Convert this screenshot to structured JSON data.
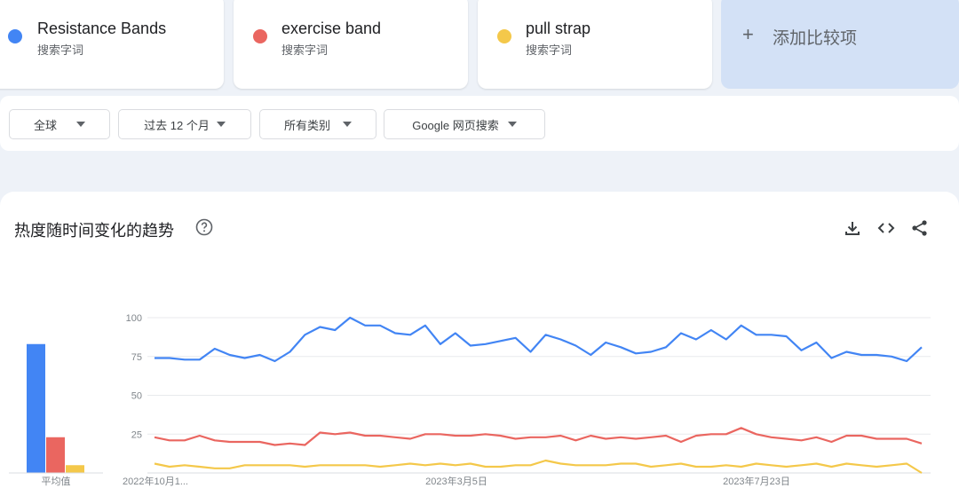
{
  "terms": [
    {
      "name": "Resistance Bands",
      "sub": "搜索字词",
      "color": "#4285f4"
    },
    {
      "name": "exercise band",
      "sub": "搜索字词",
      "color": "#ea6660"
    },
    {
      "name": "pull strap",
      "sub": "搜索字词",
      "color": "#f4c84a"
    }
  ],
  "add_compare": {
    "label": "添加比较项"
  },
  "filters": {
    "region": "全球",
    "period": "过去 12 个月",
    "category": "所有类别",
    "source": "Google 网页搜索"
  },
  "chart_section": {
    "title": "热度随时间变化的趋势"
  },
  "chart_data": {
    "type": "line",
    "ylim": [
      0,
      100
    ],
    "yticks": [
      "100",
      "75",
      "50",
      "25"
    ],
    "xtick_labels": [
      "2022年10月1...",
      "2023年3月5日",
      "2023年7月23日"
    ],
    "average_label": "平均值",
    "averages": [
      83,
      23,
      5
    ],
    "series": [
      {
        "name": "Resistance Bands",
        "color": "#4285f4",
        "values": [
          74,
          74,
          73,
          73,
          80,
          76,
          74,
          76,
          72,
          78,
          89,
          94,
          92,
          100,
          95,
          95,
          90,
          89,
          95,
          83,
          90,
          82,
          83,
          85,
          87,
          78,
          89,
          86,
          82,
          76,
          84,
          81,
          77,
          78,
          81,
          90,
          86,
          92,
          86,
          95,
          89,
          89,
          88,
          79,
          84,
          74,
          78,
          76,
          76,
          75,
          72,
          81
        ]
      },
      {
        "name": "exercise band",
        "color": "#ea6660",
        "values": [
          23,
          21,
          21,
          24,
          21,
          20,
          20,
          20,
          18,
          19,
          18,
          26,
          25,
          26,
          24,
          24,
          23,
          22,
          25,
          25,
          24,
          24,
          25,
          24,
          22,
          23,
          23,
          24,
          21,
          24,
          22,
          23,
          22,
          23,
          24,
          20,
          24,
          25,
          25,
          29,
          25,
          23,
          22,
          21,
          23,
          20,
          24,
          24,
          22,
          22,
          22,
          19
        ]
      },
      {
        "name": "pull strap",
        "color": "#f4c84a",
        "values": [
          6,
          4,
          5,
          4,
          3,
          3,
          5,
          5,
          5,
          5,
          4,
          5,
          5,
          5,
          5,
          4,
          5,
          6,
          5,
          6,
          5,
          6,
          4,
          4,
          5,
          5,
          8,
          6,
          5,
          5,
          5,
          6,
          6,
          4,
          5,
          6,
          4,
          4,
          5,
          4,
          6,
          5,
          4,
          5,
          6,
          4,
          6,
          5,
          4,
          5,
          6,
          0
        ]
      }
    ]
  }
}
